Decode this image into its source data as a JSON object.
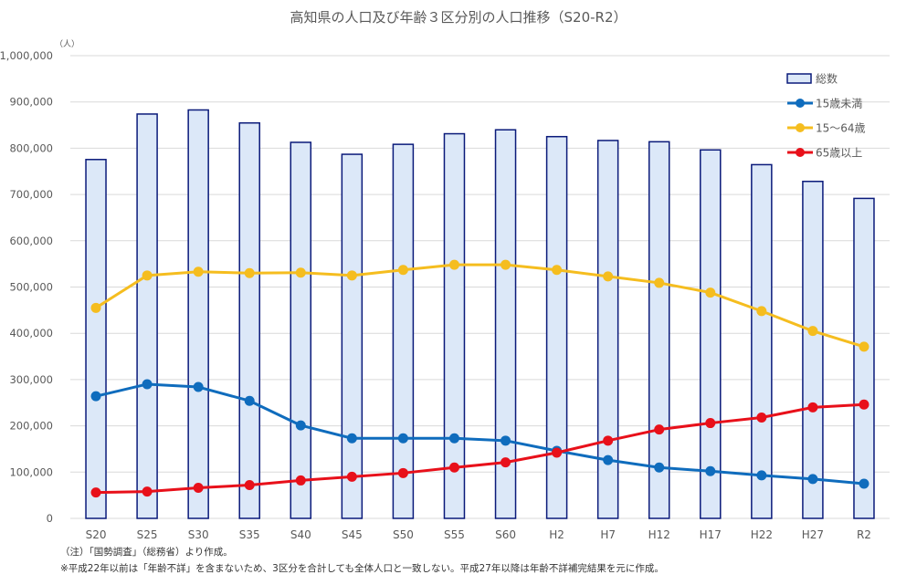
{
  "chart_data": {
    "type": "bar+line",
    "title": "高知県の人口及び年齢３区分別の人口推移（S20-R2）",
    "ylabel": "（人）",
    "xlabel": "",
    "ylim": [
      0,
      1000000
    ],
    "yticks": [
      0,
      100000,
      200000,
      300000,
      400000,
      500000,
      600000,
      700000,
      800000,
      900000,
      1000000
    ],
    "ytick_labels": [
      "0",
      "100,000",
      "200,000",
      "300,000",
      "400,000",
      "500,000",
      "600,000",
      "700,000",
      "800,000",
      "900,000",
      "1,000,000"
    ],
    "grid": true,
    "legend_position": "top-right",
    "categories": [
      "S20",
      "S25",
      "S30",
      "S35",
      "S40",
      "S45",
      "S50",
      "S55",
      "S60",
      "H2",
      "H7",
      "H12",
      "H17",
      "H22",
      "H27",
      "R2"
    ],
    "series": [
      {
        "name": "総数",
        "type": "bar",
        "color": "#dce8f8",
        "stroke": "#0a1a7a",
        "values": [
          775578,
          873874,
          882683,
          854595,
          812714,
          786882,
          808397,
          831275,
          839784,
          825034,
          816704,
          813949,
          796292,
          764456,
          728276,
          691527
        ]
      },
      {
        "name": "15歳未満",
        "type": "line",
        "color": "#0f6cbd",
        "values": [
          264000,
          290000,
          284000,
          254000,
          201000,
          173000,
          173000,
          173000,
          168000,
          146000,
          126000,
          110000,
          102000,
          93000,
          85000,
          75000
        ]
      },
      {
        "name": "15～64歳",
        "type": "line",
        "color": "#f5bd1f",
        "values": [
          455000,
          525000,
          533000,
          530000,
          531000,
          525000,
          537000,
          548000,
          548000,
          537000,
          523000,
          509000,
          488000,
          448000,
          405000,
          371000
        ]
      },
      {
        "name": "65歳以上",
        "type": "line",
        "color": "#e8101a",
        "values": [
          56000,
          58000,
          66000,
          72000,
          82000,
          90000,
          98000,
          110000,
          121000,
          142000,
          168000,
          192000,
          206000,
          218000,
          240000,
          246000
        ]
      }
    ]
  },
  "notes": [
    "（注）「国勢調査」（総務省）より作成。",
    "※平成22年以前は「年齢不詳」を含まないため、3区分を合計しても全体人口と一致しない。平成27年以降は年齢不詳補完結果を元に作成。"
  ]
}
